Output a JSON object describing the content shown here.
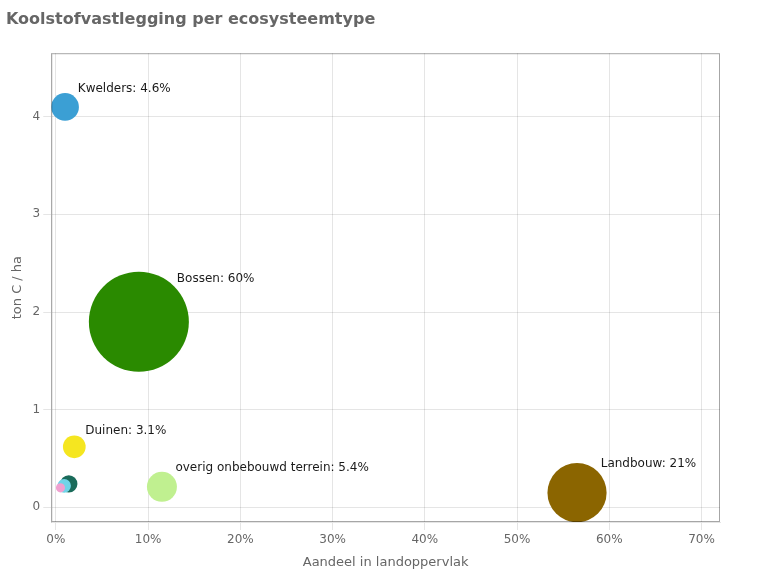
{
  "chart_data": {
    "type": "bubble",
    "title": "Koolstofvastlegging per ecosysteemtype",
    "xlabel": "Aandeel in landoppervlak",
    "ylabel": "ton C / ha",
    "labels": [
      "Kwelders: 4.6%",
      "Bossen: 60%",
      "Duinen: 3.1%",
      "overig onbebouwd terrein: 5.4%",
      "Landbouw: 21%",
      null,
      null,
      null
    ],
    "x": [
      0.01,
      0.09,
      0.02,
      0.115,
      0.565,
      0.014,
      0.009,
      0.005
    ],
    "values": [
      4.1,
      1.9,
      0.62,
      0.21,
      0.15,
      0.24,
      0.22,
      0.2
    ],
    "sizes": [
      4.6,
      60.0,
      3.1,
      5.4,
      21.0,
      1.8,
      1.1,
      0.5
    ],
    "colors": [
      "#3b9fd4",
      "#2a8a00",
      "#f5e620",
      "#c0f090",
      "#8b6500",
      "#1a6b5a",
      "#70d4e8",
      "#f0a0d0"
    ],
    "xlim": [
      -0.005,
      0.72
    ],
    "ylim": [
      -0.15,
      4.65
    ],
    "xticks": [
      {
        "value": 0.0,
        "label": "0%"
      },
      {
        "value": 0.1,
        "label": "10%"
      },
      {
        "value": 0.2,
        "label": "20%"
      },
      {
        "value": 0.3,
        "label": "30%"
      },
      {
        "value": 0.4,
        "label": "40%"
      },
      {
        "value": 0.5,
        "label": "50%"
      },
      {
        "value": 0.6,
        "label": "60%"
      },
      {
        "value": 0.7,
        "label": "70%"
      }
    ],
    "yticks": [
      0,
      1,
      2,
      3,
      4
    ],
    "grid": true
  }
}
